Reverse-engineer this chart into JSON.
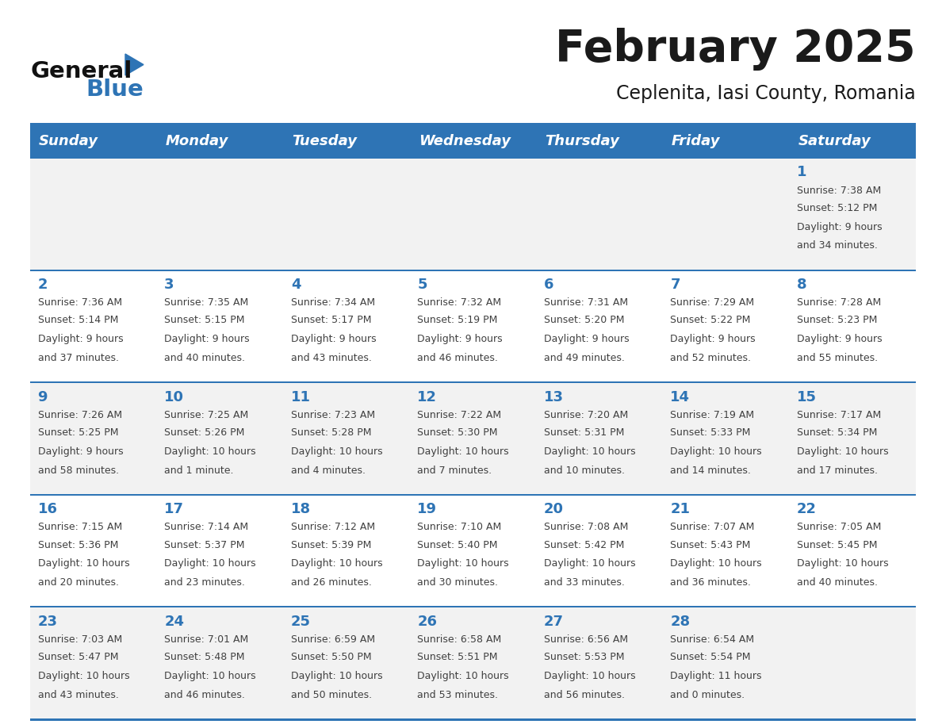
{
  "title": "February 2025",
  "subtitle": "Ceplenita, Iasi County, Romania",
  "header_bg": "#2E74B5",
  "header_text_color": "#FFFFFF",
  "row_bg_odd": "#F2F2F2",
  "row_bg_even": "#FFFFFF",
  "separator_color": "#2E74B5",
  "day_headers": [
    "Sunday",
    "Monday",
    "Tuesday",
    "Wednesday",
    "Thursday",
    "Friday",
    "Saturday"
  ],
  "cell_text_color": "#404040",
  "day_num_color": "#2E74B5",
  "logo_general_color": "#111111",
  "logo_blue_color": "#2E74B5",
  "logo_triangle_color": "#2E74B5",
  "calendar_data": [
    [
      null,
      null,
      null,
      null,
      null,
      null,
      {
        "day": 1,
        "sunrise": "7:38 AM",
        "sunset": "5:12 PM",
        "daylight": "9 hours and 34 minutes."
      }
    ],
    [
      {
        "day": 2,
        "sunrise": "7:36 AM",
        "sunset": "5:14 PM",
        "daylight": "9 hours and 37 minutes."
      },
      {
        "day": 3,
        "sunrise": "7:35 AM",
        "sunset": "5:15 PM",
        "daylight": "9 hours and 40 minutes."
      },
      {
        "day": 4,
        "sunrise": "7:34 AM",
        "sunset": "5:17 PM",
        "daylight": "9 hours and 43 minutes."
      },
      {
        "day": 5,
        "sunrise": "7:32 AM",
        "sunset": "5:19 PM",
        "daylight": "9 hours and 46 minutes."
      },
      {
        "day": 6,
        "sunrise": "7:31 AM",
        "sunset": "5:20 PM",
        "daylight": "9 hours and 49 minutes."
      },
      {
        "day": 7,
        "sunrise": "7:29 AM",
        "sunset": "5:22 PM",
        "daylight": "9 hours and 52 minutes."
      },
      {
        "day": 8,
        "sunrise": "7:28 AM",
        "sunset": "5:23 PM",
        "daylight": "9 hours and 55 minutes."
      }
    ],
    [
      {
        "day": 9,
        "sunrise": "7:26 AM",
        "sunset": "5:25 PM",
        "daylight": "9 hours and 58 minutes."
      },
      {
        "day": 10,
        "sunrise": "7:25 AM",
        "sunset": "5:26 PM",
        "daylight": "10 hours and 1 minute."
      },
      {
        "day": 11,
        "sunrise": "7:23 AM",
        "sunset": "5:28 PM",
        "daylight": "10 hours and 4 minutes."
      },
      {
        "day": 12,
        "sunrise": "7:22 AM",
        "sunset": "5:30 PM",
        "daylight": "10 hours and 7 minutes."
      },
      {
        "day": 13,
        "sunrise": "7:20 AM",
        "sunset": "5:31 PM",
        "daylight": "10 hours and 10 minutes."
      },
      {
        "day": 14,
        "sunrise": "7:19 AM",
        "sunset": "5:33 PM",
        "daylight": "10 hours and 14 minutes."
      },
      {
        "day": 15,
        "sunrise": "7:17 AM",
        "sunset": "5:34 PM",
        "daylight": "10 hours and 17 minutes."
      }
    ],
    [
      {
        "day": 16,
        "sunrise": "7:15 AM",
        "sunset": "5:36 PM",
        "daylight": "10 hours and 20 minutes."
      },
      {
        "day": 17,
        "sunrise": "7:14 AM",
        "sunset": "5:37 PM",
        "daylight": "10 hours and 23 minutes."
      },
      {
        "day": 18,
        "sunrise": "7:12 AM",
        "sunset": "5:39 PM",
        "daylight": "10 hours and 26 minutes."
      },
      {
        "day": 19,
        "sunrise": "7:10 AM",
        "sunset": "5:40 PM",
        "daylight": "10 hours and 30 minutes."
      },
      {
        "day": 20,
        "sunrise": "7:08 AM",
        "sunset": "5:42 PM",
        "daylight": "10 hours and 33 minutes."
      },
      {
        "day": 21,
        "sunrise": "7:07 AM",
        "sunset": "5:43 PM",
        "daylight": "10 hours and 36 minutes."
      },
      {
        "day": 22,
        "sunrise": "7:05 AM",
        "sunset": "5:45 PM",
        "daylight": "10 hours and 40 minutes."
      }
    ],
    [
      {
        "day": 23,
        "sunrise": "7:03 AM",
        "sunset": "5:47 PM",
        "daylight": "10 hours and 43 minutes."
      },
      {
        "day": 24,
        "sunrise": "7:01 AM",
        "sunset": "5:48 PM",
        "daylight": "10 hours and 46 minutes."
      },
      {
        "day": 25,
        "sunrise": "6:59 AM",
        "sunset": "5:50 PM",
        "daylight": "10 hours and 50 minutes."
      },
      {
        "day": 26,
        "sunrise": "6:58 AM",
        "sunset": "5:51 PM",
        "daylight": "10 hours and 53 minutes."
      },
      {
        "day": 27,
        "sunrise": "6:56 AM",
        "sunset": "5:53 PM",
        "daylight": "10 hours and 56 minutes."
      },
      {
        "day": 28,
        "sunrise": "6:54 AM",
        "sunset": "5:54 PM",
        "daylight": "11 hours and 0 minutes."
      },
      null
    ]
  ]
}
